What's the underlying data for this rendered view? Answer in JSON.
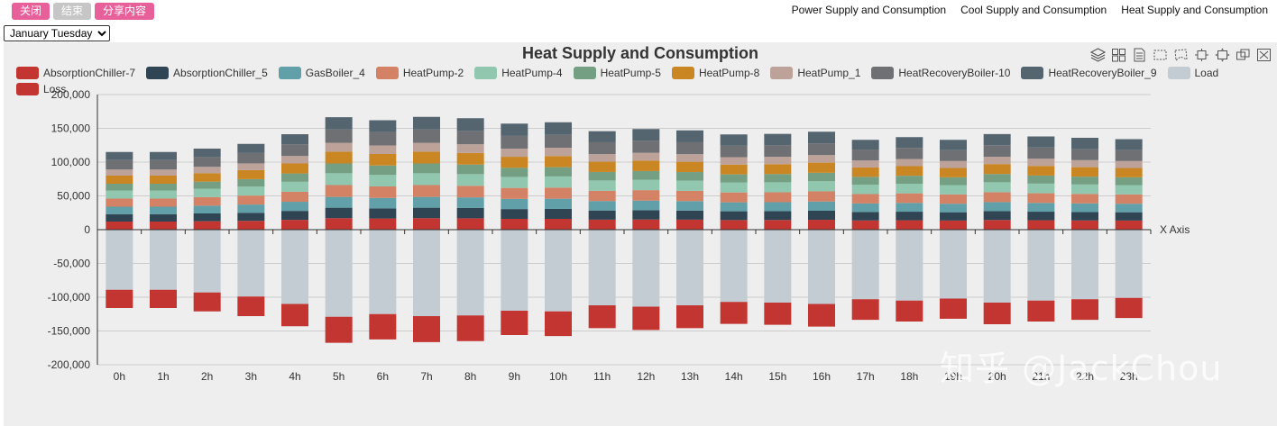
{
  "buttons": {
    "close": "关闭",
    "end": "结束",
    "share": "分享内容"
  },
  "nav": [
    "Power Supply and Consumption",
    "Cool Supply and Consumption",
    "Heat Supply and Consumption"
  ],
  "period_select": {
    "selected": "January Tuesday"
  },
  "watermark": "知乎 @JackChou",
  "toolbox_icons": [
    "layers-icon",
    "grid-icon",
    "document-icon",
    "select-rect-icon",
    "lasso-icon",
    "restore-icon",
    "zoom-icon",
    "overlap-icon",
    "clear-icon"
  ],
  "chart_data": {
    "type": "bar",
    "stacked": true,
    "title": "Heat Supply and Consumption",
    "xlabel": "X Axis",
    "ylabel": "",
    "ylim": [
      -200000,
      200000
    ],
    "yticks": [
      200000,
      150000,
      100000,
      50000,
      0,
      -50000,
      -100000,
      -150000,
      -200000
    ],
    "ytick_labels": [
      "200,000",
      "150,000",
      "100,000",
      "50,000",
      "0",
      "-50,000",
      "-100,000",
      "-150,000",
      "-200,000"
    ],
    "categories": [
      "0h",
      "1h",
      "2h",
      "3h",
      "4h",
      "5h",
      "6h",
      "7h",
      "8h",
      "9h",
      "10h",
      "11h",
      "12h",
      "13h",
      "14h",
      "15h",
      "16h",
      "17h",
      "18h",
      "19h",
      "20h",
      "21h",
      "22h",
      "23h"
    ],
    "series": [
      {
        "name": "AbsorptionChiller-7",
        "color": "#c23531",
        "values": [
          12000,
          12000,
          12500,
          13000,
          14500,
          17000,
          16500,
          17000,
          16800,
          16000,
          16000,
          14800,
          15000,
          14800,
          14200,
          14300,
          14600,
          13600,
          13900,
          13500,
          14300,
          13900,
          13600,
          13500
        ]
      },
      {
        "name": "AbsorptionChiller_5",
        "color": "#2f4554",
        "values": [
          11000,
          11000,
          11500,
          12000,
          13300,
          15500,
          15000,
          15500,
          15300,
          14500,
          14700,
          13600,
          13800,
          13500,
          13000,
          13000,
          13400,
          12500,
          12700,
          12300,
          13100,
          12700,
          12500,
          12300
        ]
      },
      {
        "name": "GasBoiler_4",
        "color": "#61a0a8",
        "values": [
          11000,
          11000,
          11500,
          12200,
          13500,
          16000,
          15500,
          16000,
          15700,
          15000,
          15100,
          14000,
          14200,
          14000,
          13300,
          13400,
          13700,
          12700,
          13000,
          12600,
          13400,
          13000,
          12800,
          12600
        ]
      },
      {
        "name": "HeatPump-2",
        "color": "#d48265",
        "values": [
          12000,
          12000,
          12600,
          13300,
          14800,
          17500,
          17000,
          17500,
          17200,
          16300,
          16500,
          15200,
          15500,
          15200,
          14600,
          14700,
          15000,
          13900,
          14200,
          13800,
          14700,
          14300,
          14000,
          13800
        ]
      },
      {
        "name": "HeatPump-4",
        "color": "#91c7ae",
        "values": [
          12000,
          12000,
          12500,
          13300,
          14800,
          17500,
          17000,
          17500,
          17200,
          16300,
          16500,
          15200,
          15500,
          15200,
          14600,
          14700,
          15000,
          13900,
          14200,
          13800,
          14700,
          14300,
          14000,
          13800
        ]
      },
      {
        "name": "HeatPump-5",
        "color": "#749f83",
        "values": [
          10000,
          10000,
          10500,
          11000,
          12300,
          14500,
          14000,
          14500,
          14200,
          13500,
          13700,
          12600,
          12800,
          12600,
          12100,
          12200,
          12500,
          11600,
          11800,
          11500,
          12200,
          11900,
          11600,
          11500
        ]
      },
      {
        "name": "HeatPump-8",
        "color": "#ca8622",
        "values": [
          12000,
          12000,
          12500,
          13300,
          14800,
          17500,
          17000,
          17500,
          17200,
          16300,
          16500,
          15200,
          15500,
          15200,
          14600,
          14700,
          15000,
          13900,
          14200,
          13800,
          14700,
          14300,
          14000,
          13800
        ]
      },
      {
        "name": "HeatPump_1",
        "color": "#bda29a",
        "values": [
          9000,
          9000,
          9400,
          10000,
          11100,
          13000,
          12700,
          13000,
          12800,
          12100,
          12300,
          11300,
          11500,
          11300,
          10900,
          10900,
          11200,
          10400,
          10600,
          10300,
          10900,
          10600,
          10400,
          10300
        ]
      },
      {
        "name": "HeatRecoveryBoiler-10",
        "color": "#6e7074",
        "values": [
          14000,
          14000,
          14500,
          15400,
          17200,
          20000,
          19500,
          20000,
          19800,
          18800,
          19000,
          17500,
          17800,
          17600,
          16900,
          17000,
          17300,
          16100,
          16500,
          16000,
          17000,
          16600,
          16200,
          16100
        ]
      },
      {
        "name": "HeatRecoveryBoiler_9",
        "color": "#546570",
        "values": [
          12000,
          12000,
          12500,
          13500,
          15000,
          18000,
          17800,
          18500,
          18800,
          18200,
          18700,
          16400,
          17400,
          17600,
          16800,
          16900,
          17300,
          14400,
          15900,
          15400,
          16500,
          16400,
          16900,
          16300
        ]
      },
      {
        "name": "Load",
        "color": "#c4ccd3",
        "values": [
          -89000,
          -89000,
          -93000,
          -99000,
          -110000,
          -129000,
          -125000,
          -128000,
          -127000,
          -120000,
          -121000,
          -112000,
          -114000,
          -112000,
          -107000,
          -108000,
          -110000,
          -103000,
          -105000,
          -102000,
          -108000,
          -105000,
          -103000,
          -101000
        ]
      },
      {
        "name": "Loss",
        "color": "#c23531",
        "values": [
          -27000,
          -27000,
          -28000,
          -29000,
          -33000,
          -38500,
          -37500,
          -38500,
          -38000,
          -36000,
          -36500,
          -33800,
          -34500,
          -33800,
          -32500,
          -32800,
          -33500,
          -30500,
          -31000,
          -29900,
          -32000,
          -31000,
          -30500,
          -29800
        ]
      }
    ]
  }
}
